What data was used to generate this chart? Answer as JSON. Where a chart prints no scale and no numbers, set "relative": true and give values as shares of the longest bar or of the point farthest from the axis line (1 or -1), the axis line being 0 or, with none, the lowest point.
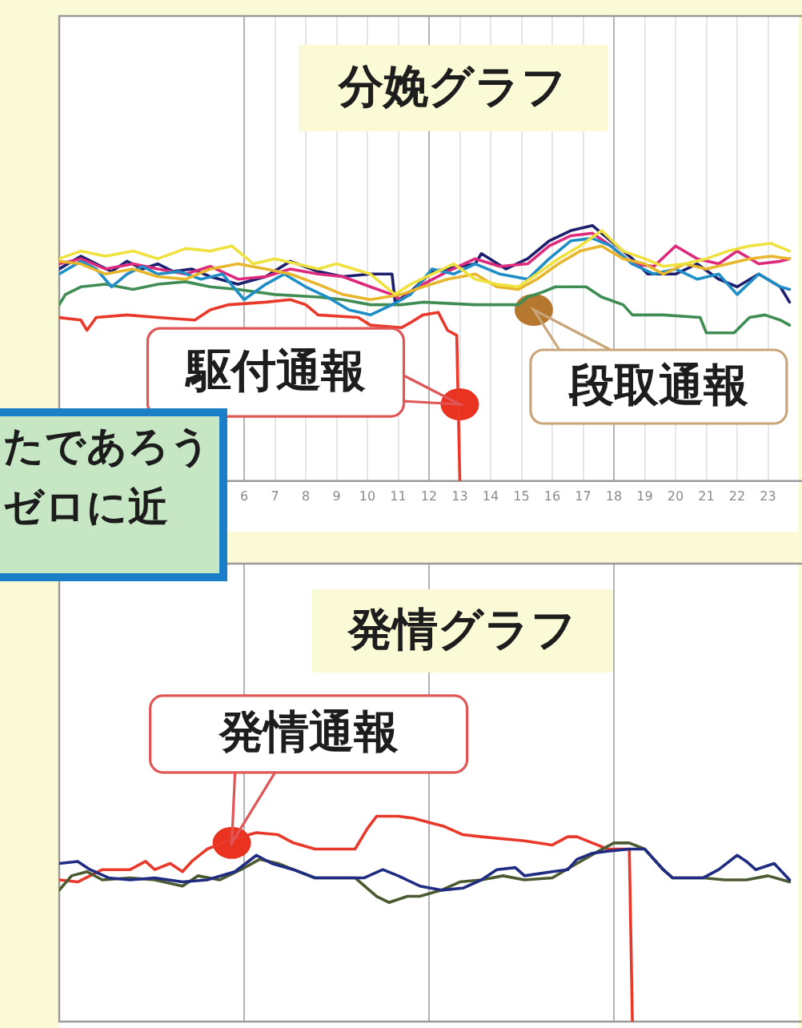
{
  "chart_data": [
    {
      "type": "line",
      "title": "分娩グラフ",
      "relative": true,
      "xlim": [
        0,
        24
      ],
      "xticks": [
        6,
        7,
        8,
        9,
        10,
        11,
        12,
        13,
        14,
        15,
        16,
        17,
        18,
        19,
        20,
        21,
        22,
        23
      ],
      "grid": "x",
      "tick_labels": "x",
      "annotations": [
        {
          "text": "駆付通報",
          "x": 13.0,
          "y": 0.3
        },
        {
          "text": "段取通報",
          "x": 15.4,
          "y": 0.67
        }
      ],
      "series": [
        {
          "color": "#efe23e",
          "x": [
            0,
            0.7,
            1.5,
            2.4,
            3.2,
            4.1,
            4.9,
            5.6,
            6.3,
            7,
            7.7,
            8.4,
            9,
            10.1,
            10.9,
            11.4,
            12.1,
            12.8,
            13.5,
            14.2,
            14.9,
            15.5,
            16.2,
            16.9,
            17.6,
            18.3,
            19,
            19.6,
            20.3,
            21,
            21.7,
            22.4,
            23.1,
            23.7
          ],
          "values": [
            0.87,
            0.9,
            0.88,
            0.9,
            0.87,
            0.91,
            0.9,
            0.92,
            0.85,
            0.87,
            0.85,
            0.83,
            0.85,
            0.81,
            0.73,
            0.77,
            0.81,
            0.85,
            0.79,
            0.77,
            0.76,
            0.81,
            0.87,
            0.92,
            0.98,
            0.9,
            0.87,
            0.84,
            0.85,
            0.87,
            0.9,
            0.92,
            0.93,
            0.9
          ]
        },
        {
          "color": "#e7b62c",
          "x": [
            0,
            0.7,
            1.5,
            2.4,
            3.2,
            4.1,
            4.9,
            5.8,
            6.7,
            7.5,
            8.4,
            9.2,
            10.1,
            11.1,
            11.8,
            12.6,
            13.5,
            14.2,
            14.9,
            15.5,
            16.2,
            16.9,
            17.6,
            18.3,
            19,
            19.6,
            20.3,
            21,
            21.7,
            22.4,
            23.1,
            23.7
          ],
          "values": [
            0.86,
            0.85,
            0.81,
            0.83,
            0.8,
            0.79,
            0.83,
            0.85,
            0.83,
            0.81,
            0.77,
            0.73,
            0.71,
            0.73,
            0.76,
            0.79,
            0.81,
            0.76,
            0.75,
            0.79,
            0.85,
            0.9,
            0.92,
            0.87,
            0.85,
            0.81,
            0.85,
            0.83,
            0.85,
            0.87,
            0.88,
            0.87
          ]
        },
        {
          "color": "#1f8ec6",
          "x": [
            0,
            0.7,
            1.2,
            1.7,
            2.2,
            2.7,
            3.2,
            3.9,
            4.6,
            5.3,
            6,
            6.7,
            7.3,
            8,
            8.7,
            9.4,
            10.1,
            10.8,
            11.4,
            12.1,
            12.8,
            13.5,
            14.3,
            15.2,
            15.9,
            16.6,
            17.3,
            17.9,
            18.6,
            19.3,
            20,
            20.7,
            21.4,
            22,
            22.7,
            23.4,
            23.7
          ],
          "values": [
            0.81,
            0.86,
            0.83,
            0.76,
            0.81,
            0.84,
            0.81,
            0.82,
            0.79,
            0.81,
            0.71,
            0.77,
            0.81,
            0.76,
            0.72,
            0.67,
            0.65,
            0.69,
            0.73,
            0.83,
            0.81,
            0.85,
            0.81,
            0.79,
            0.87,
            0.94,
            0.95,
            0.92,
            0.85,
            0.81,
            0.83,
            0.79,
            0.81,
            0.73,
            0.81,
            0.76,
            0.75
          ]
        },
        {
          "color": "#de2a7c",
          "x": [
            0,
            0.7,
            1.5,
            2.4,
            3.2,
            4.1,
            4.9,
            5.8,
            6.7,
            7.5,
            8.4,
            9.2,
            10.1,
            10.8,
            11.1,
            11.8,
            12.6,
            13.5,
            14.3,
            15.2,
            15.9,
            16.6,
            17.3,
            17.9,
            18.6,
            19.3,
            20,
            20.7,
            21.4,
            22,
            22.7,
            23.4,
            23.7
          ],
          "values": [
            0.85,
            0.87,
            0.83,
            0.85,
            0.83,
            0.81,
            0.84,
            0.79,
            0.8,
            0.83,
            0.81,
            0.8,
            0.76,
            0.73,
            0.71,
            0.77,
            0.82,
            0.87,
            0.84,
            0.85,
            0.92,
            0.96,
            0.97,
            0.92,
            0.85,
            0.84,
            0.92,
            0.87,
            0.85,
            0.9,
            0.85,
            0.86,
            0.87
          ]
        },
        {
          "color": "#1d1f6e",
          "x": [
            0,
            0.7,
            1.2,
            1.7,
            2.2,
            2.7,
            3.2,
            3.7,
            4.3,
            4.9,
            5.8,
            6.7,
            7.5,
            8.4,
            9.2,
            10.1,
            10.8,
            10.9,
            11.4,
            12.1,
            13.5,
            13.7,
            14.5,
            15.2,
            15.9,
            16.6,
            17.3,
            17.9,
            18.6,
            19.1,
            20,
            20.7,
            21.4,
            22,
            22.7,
            23.4,
            23.7
          ],
          "values": [
            0.83,
            0.88,
            0.85,
            0.82,
            0.86,
            0.83,
            0.85,
            0.82,
            0.83,
            0.8,
            0.77,
            0.8,
            0.86,
            0.82,
            0.8,
            0.81,
            0.81,
            0.7,
            0.74,
            0.82,
            0.85,
            0.89,
            0.83,
            0.87,
            0.94,
            0.98,
            1,
            0.94,
            0.87,
            0.81,
            0.81,
            0.85,
            0.79,
            0.76,
            0.81,
            0.76,
            0.7
          ]
        },
        {
          "color": "#3f8d55",
          "x": [
            0,
            0.2,
            0.7,
            1.5,
            2.4,
            3.2,
            4.1,
            4.9,
            5.8,
            7,
            8.4,
            9.2,
            10.1,
            11.1,
            11.8,
            13.5,
            14.9,
            15.2,
            15.7,
            16.1,
            17.1,
            17.6,
            18.3,
            18.6,
            19.6,
            20.8,
            21,
            21.9,
            22.4,
            22.9,
            23.4,
            23.7
          ],
          "values": [
            0.69,
            0.73,
            0.76,
            0.77,
            0.75,
            0.77,
            0.78,
            0.76,
            0.75,
            0.73,
            0.72,
            0.71,
            0.69,
            0.69,
            0.7,
            0.69,
            0.69,
            0.72,
            0.74,
            0.76,
            0.76,
            0.72,
            0.69,
            0.65,
            0.65,
            0.64,
            0.58,
            0.58,
            0.64,
            0.65,
            0.63,
            0.61
          ]
        },
        {
          "color": "#e8392b",
          "x": [
            0,
            0.7,
            0.9,
            1.2,
            2.2,
            3.2,
            4.4,
            4.9,
            5.5,
            6.7,
            7.5,
            8,
            8.4,
            9.7,
            10.1,
            11.1,
            11.4,
            11.8,
            12.3,
            12.6,
            12.9,
            13
          ],
          "values": [
            0.64,
            0.63,
            0.59,
            0.64,
            0.65,
            0.64,
            0.63,
            0.67,
            0.69,
            0.7,
            0.71,
            0.69,
            0.65,
            0.64,
            0.61,
            0.6,
            0.62,
            0.65,
            0.66,
            0.59,
            0.57,
            0
          ]
        }
      ]
    },
    {
      "type": "other",
      "annotations": [
        "たであろう",
        "ゼロに近"
      ]
    },
    {
      "type": "line",
      "title": "発情グラフ",
      "relative": true,
      "xlim": [
        0,
        24
      ],
      "xticks": [
        {
          "value": 6,
          "label": null
        },
        {
          "value": 12,
          "label": null
        },
        {
          "value": 18,
          "label": null
        }
      ],
      "grid": "x",
      "tick_labels": false,
      "annotations": [
        {
          "text": "発情通報",
          "x": 5.6,
          "y": 0.87
        }
      ],
      "series": [
        {
          "color": "#1f2c82",
          "x": [
            0,
            0.6,
            1,
            1.6,
            2.3,
            3.1,
            4,
            4.8,
            5.7,
            6.4,
            6.9,
            7.6,
            8.3,
            9.9,
            10.5,
            11,
            11.7,
            12.4,
            13.1,
            13.7,
            14.2,
            14.8,
            15.1,
            16,
            16.5,
            16.8,
            17.3,
            17.8,
            18.5,
            19,
            19.6,
            19.9,
            20.9,
            21.4,
            22,
            22.3,
            22.6,
            23.2,
            23.7
          ],
          "values": [
            0.77,
            0.78,
            0.74,
            0.7,
            0.69,
            0.7,
            0.68,
            0.69,
            0.73,
            0.81,
            0.77,
            0.74,
            0.7,
            0.7,
            0.74,
            0.71,
            0.66,
            0.64,
            0.65,
            0.69,
            0.74,
            0.75,
            0.71,
            0.73,
            0.74,
            0.79,
            0.82,
            0.83,
            0.84,
            0.84,
            0.74,
            0.7,
            0.7,
            0.74,
            0.81,
            0.78,
            0.74,
            0.77,
            0.69
          ]
        },
        {
          "color": "#4b5a31",
          "x": [
            0,
            0.4,
            0.9,
            1.4,
            2.3,
            3.1,
            4,
            4.5,
            5.2,
            5.9,
            6.5,
            7.1,
            7.6,
            8.3,
            9.6,
            10.3,
            10.7,
            11.3,
            11.7,
            12.4,
            13,
            13.7,
            14.4,
            15.1,
            16,
            16.8,
            17.5,
            18,
            18.5,
            19,
            19.6,
            19.9,
            20.9,
            21.6,
            22.3,
            23,
            23.7
          ],
          "values": [
            0.64,
            0.71,
            0.73,
            0.69,
            0.7,
            0.69,
            0.66,
            0.71,
            0.69,
            0.74,
            0.79,
            0.77,
            0.74,
            0.7,
            0.7,
            0.61,
            0.58,
            0.61,
            0.61,
            0.64,
            0.68,
            0.69,
            0.71,
            0.69,
            0.7,
            0.77,
            0.83,
            0.87,
            0.87,
            0.84,
            0.74,
            0.7,
            0.7,
            0.69,
            0.69,
            0.71,
            0.68
          ]
        },
        {
          "color": "#e8392b",
          "x": [
            0,
            0.6,
            1.4,
            2.3,
            2.8,
            3.1,
            3.6,
            4,
            4.3,
            4.8,
            5.3,
            5.9,
            6.4,
            7.1,
            7.6,
            8.3,
            9.6,
            10,
            10.3,
            11,
            11.5,
            12,
            12.5,
            13.1,
            13.7,
            15.1,
            16,
            16.5,
            16.8,
            17.3,
            17.8,
            18.5,
            18.6
          ],
          "values": [
            0.69,
            0.68,
            0.74,
            0.74,
            0.78,
            0.74,
            0.77,
            0.73,
            0.78,
            0.84,
            0.87,
            0.9,
            0.92,
            0.91,
            0.87,
            0.84,
            0.84,
            0.94,
            1,
            1,
            0.99,
            0.97,
            0.95,
            0.91,
            0.9,
            0.88,
            0.86,
            0.9,
            0.9,
            0.87,
            0.84,
            0.84,
            0
          ]
        }
      ]
    }
  ]
}
